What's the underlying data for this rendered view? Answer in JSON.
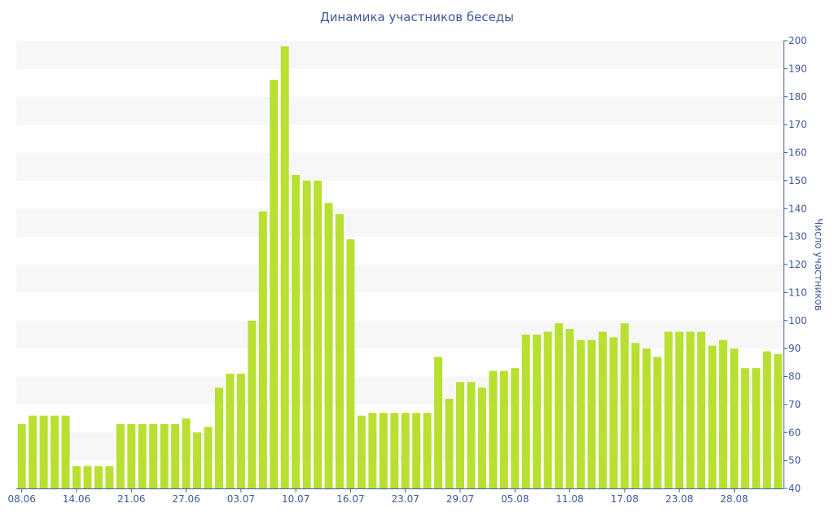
{
  "chart_data": {
    "type": "bar",
    "title": "Динамика участников беседы",
    "ylabel": "Число участников",
    "xlabel": "",
    "ylim": [
      40,
      200
    ],
    "y_axis_side": "right",
    "y_ticks": [
      40,
      50,
      60,
      70,
      80,
      90,
      100,
      110,
      120,
      130,
      140,
      150,
      160,
      170,
      180,
      190,
      200
    ],
    "x_tick_labels": [
      "08.06",
      "14.06",
      "21.06",
      "27.06",
      "03.07",
      "10.07",
      "16.07",
      "23.07",
      "29.07",
      "05.08",
      "11.08",
      "17.08",
      "23.08",
      "28.08"
    ],
    "x_tick_bar_index": [
      0,
      5,
      10,
      15,
      20,
      25,
      30,
      35,
      40,
      45,
      50,
      55,
      60,
      65
    ],
    "bar_color": "#b8e030",
    "band_color": "#f7f7f7",
    "text_color": "#3e5a99",
    "values": [
      63,
      66,
      66,
      66,
      66,
      48,
      48,
      48,
      48,
      63,
      63,
      63,
      63,
      63,
      63,
      65,
      60,
      62,
      76,
      81,
      81,
      100,
      139,
      186,
      198,
      152,
      150,
      150,
      142,
      138,
      129,
      66,
      67,
      67,
      67,
      67,
      67,
      67,
      87,
      72,
      78,
      78,
      76,
      82,
      82,
      83,
      95,
      95,
      96,
      99,
      97,
      93,
      93,
      96,
      94,
      99,
      92,
      90,
      87,
      96,
      96,
      96,
      96,
      91,
      93,
      90,
      83,
      83,
      89,
      88
    ]
  }
}
